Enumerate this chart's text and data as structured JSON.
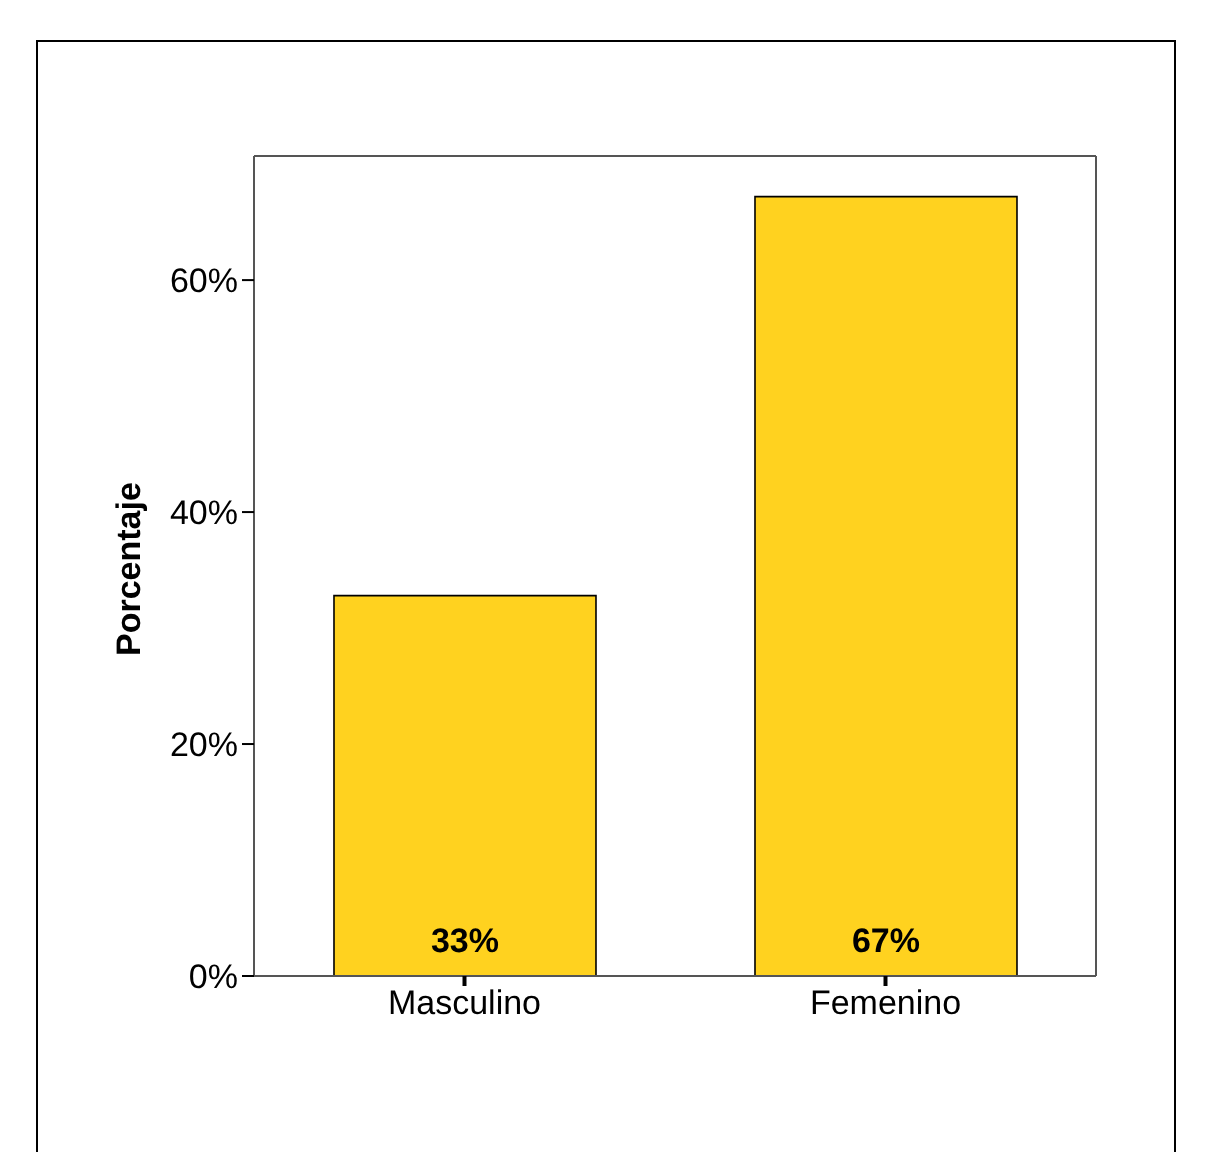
{
  "chart_data": {
    "type": "bar",
    "ylabel": "Porcentaje",
    "categories": [
      "Masculino",
      "Femenino"
    ],
    "values": [
      32.8,
      67.2
    ],
    "value_labels": [
      "33%",
      "67%"
    ],
    "color": "#ffd21f",
    "ylim": [
      0,
      70.7
    ],
    "yticks": [
      {
        "value": 0,
        "label": "0%"
      },
      {
        "value": 20,
        "label": "20%"
      },
      {
        "value": 40,
        "label": "40%"
      },
      {
        "value": 60,
        "label": "60%"
      }
    ],
    "grid": false
  }
}
